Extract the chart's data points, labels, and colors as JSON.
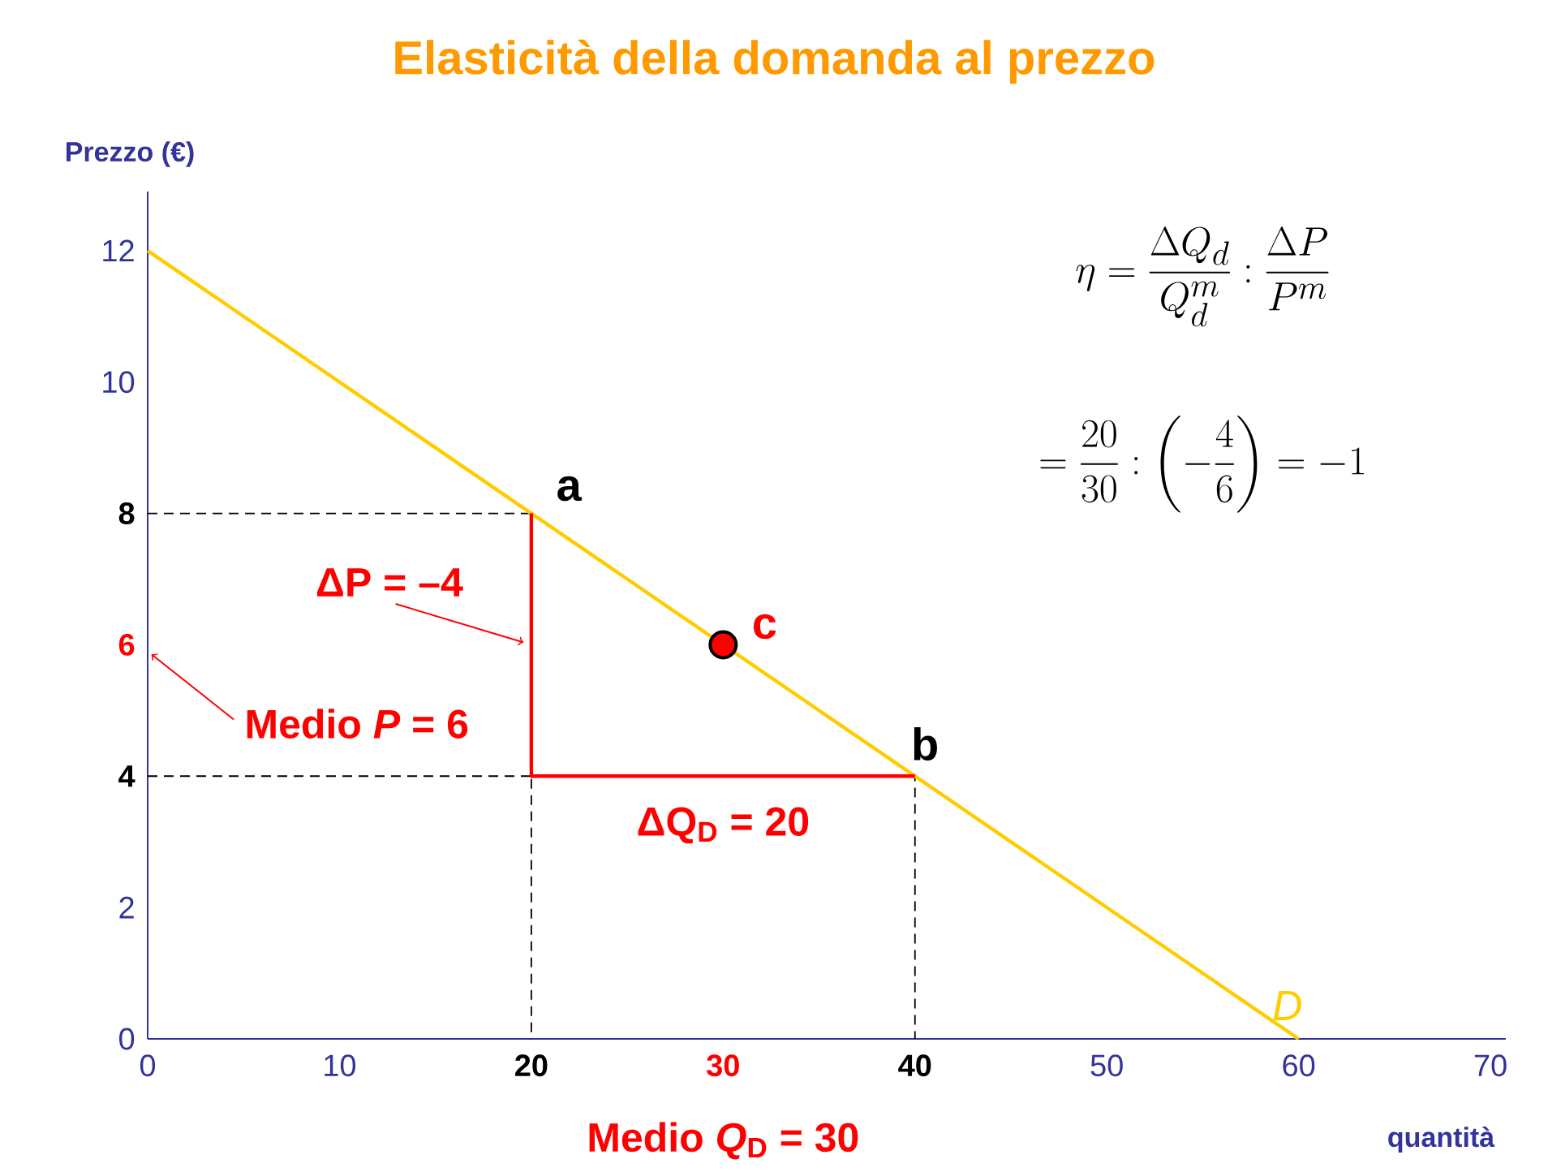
{
  "chart_data": {
    "type": "line",
    "title": "Elasticità della domanda al prezzo",
    "xlabel": "quantità",
    "ylabel": "Prezzo (€)",
    "xlim": [
      0,
      70.8
    ],
    "ylim": [
      0,
      12.9
    ],
    "xticks": [
      0,
      10,
      20,
      30,
      40,
      50,
      60,
      70
    ],
    "yticks": [
      0,
      2,
      4,
      6,
      8,
      10,
      12
    ],
    "series": [
      {
        "x": [
          0,
          20,
          20
        ],
        "values": [
          8,
          8,
          0
        ],
        "color": "#000000",
        "line_style": "dashed"
      },
      {
        "x": [
          0,
          40,
          40
        ],
        "values": [
          4,
          4,
          0
        ],
        "color": "#000000",
        "line_style": "dashed"
      },
      {
        "name": "D",
        "x": [
          0,
          60
        ],
        "values": [
          12,
          0
        ],
        "color": "#ffcc00",
        "line_style": "solid"
      },
      {
        "x": [
          20,
          20,
          40
        ],
        "values": [
          8,
          4,
          4
        ],
        "color": "#ff0000",
        "line_style": "solid"
      },
      {
        "type": "scatter",
        "x": [
          30
        ],
        "values": [
          6
        ],
        "color": "#ff0000",
        "marker": "circle"
      }
    ],
    "annotations": [
      {
        "text": "a",
        "x": 20,
        "y": 8
      },
      {
        "text": "b",
        "x": 40,
        "y": 4
      },
      {
        "text": "c",
        "x": 30,
        "y": 6
      },
      {
        "text": "ΔP = –4",
        "x": 20,
        "y": 6
      },
      "Medio *P* = 6",
      {
        "text": "ΔQ$_{D}$ = 20",
        "x": 30,
        "y": 4
      },
      "Medio *Q*$_{D}$ = 30",
      "\\eta = \\frac{\\Delta Q_d}{Q_d^m} : \\frac{\\Delta P}{P^m}",
      "= \\frac{20}{30} : \\left( -\\frac{4}{6} \\right) = -1"
    ]
  }
}
